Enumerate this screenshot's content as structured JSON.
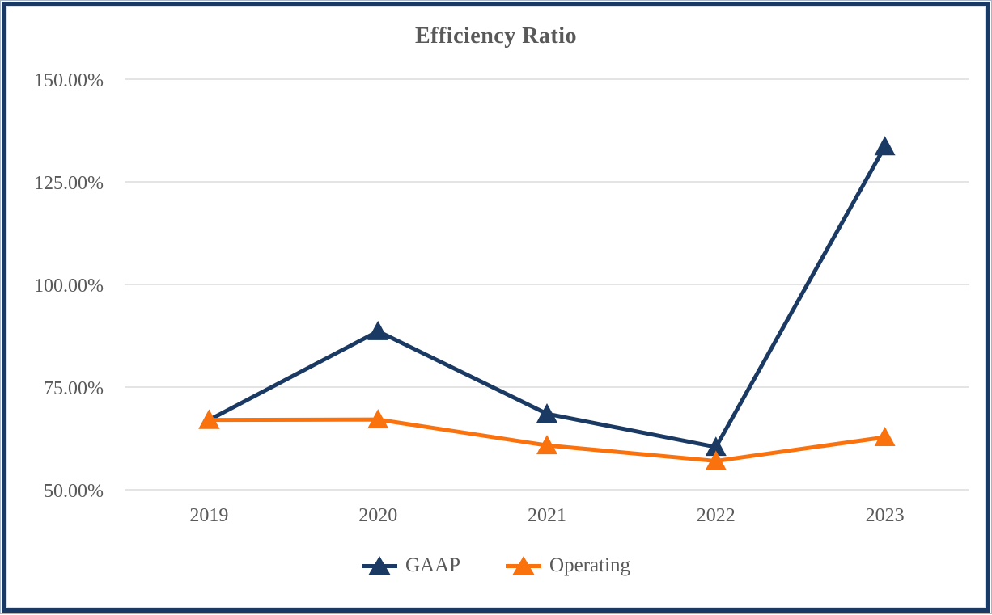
{
  "title": "Efficiency Ratio",
  "chart_data": {
    "type": "line",
    "title": "Efficiency Ratio",
    "categories": [
      "2019",
      "2020",
      "2021",
      "2022",
      "2023"
    ],
    "series": [
      {
        "name": "GAAP",
        "color": "#1B3A63",
        "marker": "triangle",
        "values": [
          67.0,
          88.6,
          68.5,
          60.4,
          133.6
        ]
      },
      {
        "name": "Operating",
        "color": "#F9720E",
        "marker": "triangle",
        "values": [
          67.0,
          67.1,
          60.8,
          57.0,
          62.8
        ]
      }
    ],
    "y_axis": {
      "min": 50,
      "max": 150,
      "step": 25,
      "tick_labels": [
        "50.00%",
        "75.00%",
        "100.00%",
        "125.00%",
        "150.00%"
      ]
    },
    "unit": "%",
    "grid": "horizontal",
    "gridline_color": "#E4E4E4",
    "text_color": "#595959",
    "legend_position": "bottom",
    "frame_border_color": "#1B3A63"
  }
}
